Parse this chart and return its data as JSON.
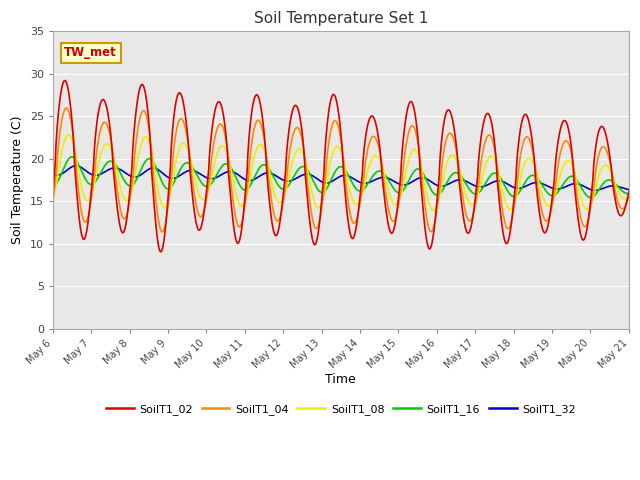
{
  "title": "Soil Temperature Set 1",
  "xlabel": "Time",
  "ylabel": "Soil Temperature (C)",
  "ylim": [
    0,
    35
  ],
  "annotation": "TW_met",
  "series_colors": {
    "SoilT1_02": "#dd0000",
    "SoilT1_04": "#ff8800",
    "SoilT1_08": "#eeee00",
    "SoilT1_16": "#00cc00",
    "SoilT1_32": "#0000cc"
  },
  "series_order": [
    "SoilT1_02",
    "SoilT1_04",
    "SoilT1_08",
    "SoilT1_16",
    "SoilT1_32"
  ],
  "tick_labels": [
    "May 6",
    "May 7",
    "May 8",
    "May 9",
    "May 10",
    "May 11",
    "May 12",
    "May 13",
    "May 14",
    "May 15",
    "May 16",
    "May 17",
    "May 18",
    "May 19",
    "May 20",
    "May 21"
  ],
  "line_width": 1.2,
  "fig_bg": "#ffffff",
  "plot_bg": "#e8e8e8",
  "grid_color": "#ffffff"
}
